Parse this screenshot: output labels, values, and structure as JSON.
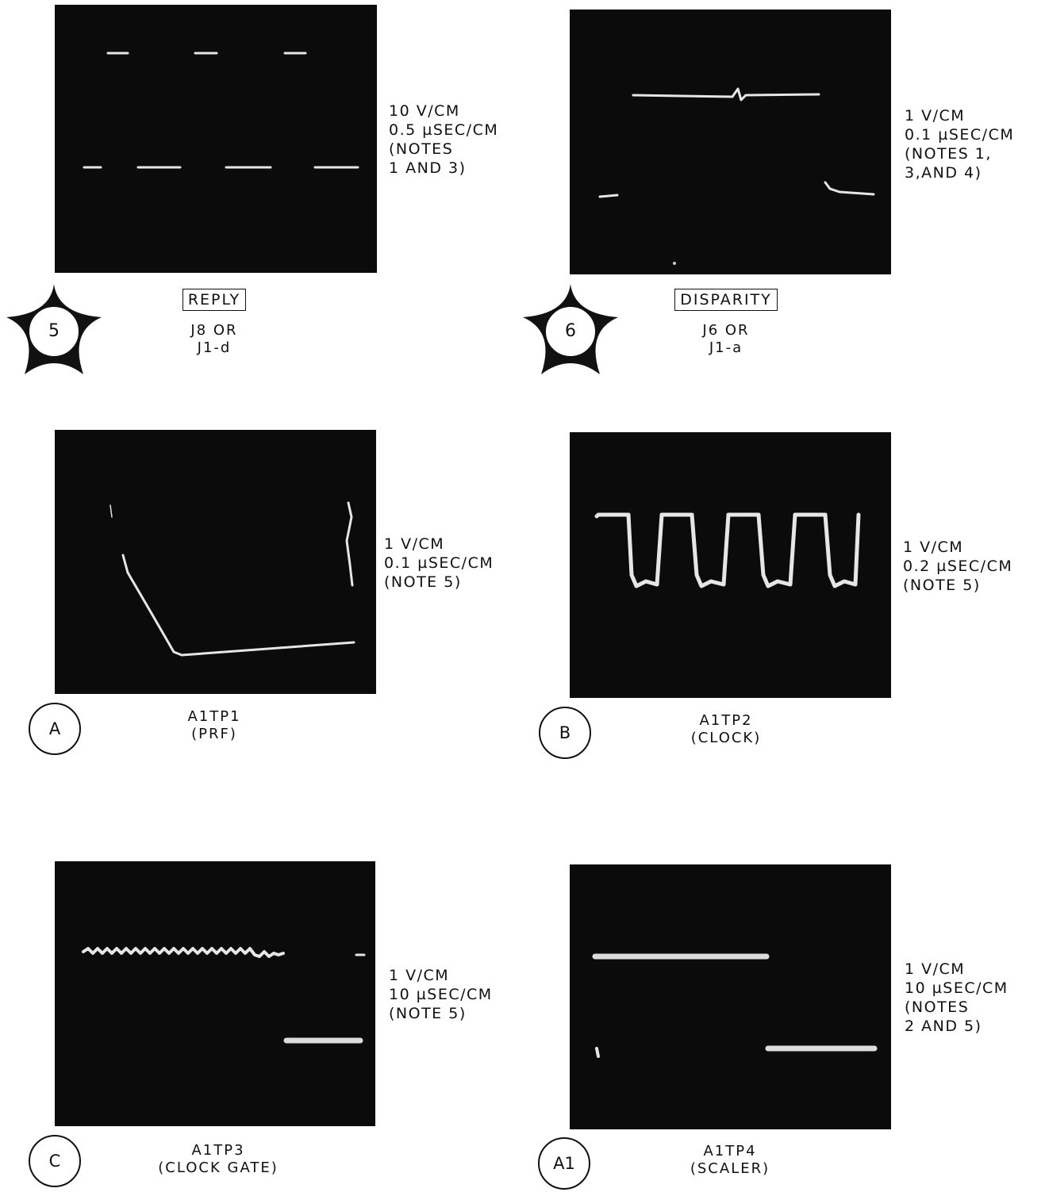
{
  "panels": [
    {
      "id": "reply",
      "badge": "5",
      "badge_style": "star",
      "caption_boxed": "REPLY",
      "caption_lines": [
        "J8 OR",
        "J1-d"
      ],
      "settings": [
        "10 V/CM",
        "0.5 µSEC/CM",
        "(NOTES",
        "1 AND 3)"
      ]
    },
    {
      "id": "disparity",
      "badge": "6",
      "badge_style": "star",
      "caption_boxed": "DISPARITY",
      "caption_lines": [
        "J6 OR",
        "J1-a"
      ],
      "settings": [
        "1 V/CM",
        "0.1 µSEC/CM",
        "(NOTES 1,",
        "3,AND 4)"
      ]
    },
    {
      "id": "prf",
      "badge": "A",
      "badge_style": "circle",
      "caption_lines": [
        "A1TP1",
        "(PRF)"
      ],
      "settings": [
        "1 V/CM",
        "0.1 µSEC/CM",
        "(NOTE 5)"
      ]
    },
    {
      "id": "clock",
      "badge": "B",
      "badge_style": "circle",
      "caption_lines": [
        "A1TP2",
        "(CLOCK)"
      ],
      "settings": [
        "1 V/CM",
        "0.2 µSEC/CM",
        "(NOTE 5)"
      ]
    },
    {
      "id": "clock-gate",
      "badge": "C",
      "badge_style": "circle",
      "caption_lines": [
        "A1TP3",
        "(CLOCK GATE)"
      ],
      "settings": [
        "1 V/CM",
        "10 µSEC/CM",
        "(NOTE 5)"
      ]
    },
    {
      "id": "scaler",
      "badge": "A1",
      "badge_style": "circle",
      "caption_lines": [
        "A1TP4",
        "(SCALER)"
      ],
      "settings": [
        "1 V/CM",
        "10 µSEC/CM",
        "(NOTES",
        "2 AND 5)"
      ]
    }
  ],
  "colors": {
    "screen": "#0b0b0b",
    "trace": "#e6e6e6",
    "ink": "#111111"
  }
}
